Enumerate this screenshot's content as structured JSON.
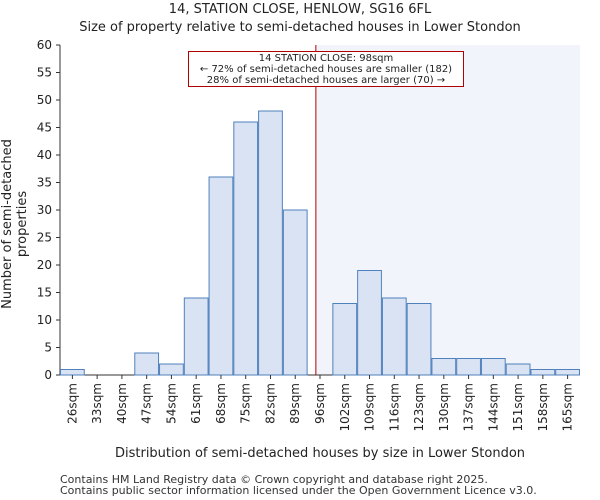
{
  "chart_data": {
    "type": "bar",
    "title": "14, STATION CLOSE, HENLOW, SG16 6FL",
    "subtitle": "Size of property relative to semi-detached houses in Lower Stondon",
    "xlabel": "Distribution of semi-detached houses by size in Lower Stondon",
    "ylabel": "Number of semi-detached properties",
    "categories": [
      "26sqm",
      "33sqm",
      "40sqm",
      "47sqm",
      "54sqm",
      "61sqm",
      "68sqm",
      "75sqm",
      "82sqm",
      "89sqm",
      "96sqm",
      "102sqm",
      "109sqm",
      "116sqm",
      "123sqm",
      "130sqm",
      "137sqm",
      "144sqm",
      "151sqm",
      "158sqm",
      "165sqm"
    ],
    "values": [
      1,
      0,
      0,
      4,
      2,
      14,
      36,
      46,
      48,
      30,
      0,
      13,
      19,
      14,
      13,
      3,
      3,
      3,
      2,
      1,
      1
    ],
    "ylim": [
      0,
      60
    ],
    "yticks": [
      0,
      5,
      10,
      15,
      20,
      25,
      30,
      35,
      40,
      45,
      50,
      55,
      60
    ],
    "marker_value": 98,
    "marker_label": "14 STATION CLOSE: 98sqm",
    "annotation": {
      "line1": "14 STATION CLOSE: 98sqm",
      "line2": "← 72% of semi-detached houses are smaller (182)",
      "line3": "28% of semi-detached houses are larger (70) →"
    },
    "colors": {
      "bar_fill": "#dae3f3",
      "bar_stroke": "#4f81bd",
      "marker": "#b00000",
      "highlight": "#f2f4fb"
    }
  },
  "footer": {
    "line1": "Contains HM Land Registry data © Crown copyright and database right 2025.",
    "line2": "Contains public sector information licensed under the Open Government Licence v3.0."
  }
}
